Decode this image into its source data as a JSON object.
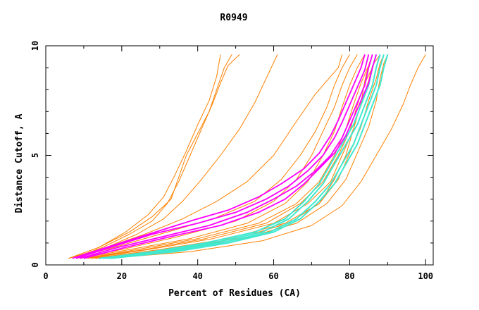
{
  "chart_data": {
    "type": "line",
    "title": "R0949",
    "xlabel": "Percent of Residues (CA)",
    "ylabel": "Distance Cutoff, A",
    "xlim": [
      0,
      102
    ],
    "ylim": [
      0,
      10
    ],
    "x_ticks": [
      0,
      20,
      40,
      60,
      80,
      100
    ],
    "y_ticks": [
      0,
      5,
      10
    ],
    "grid": false,
    "colors": {
      "orange": "#ff8000",
      "magenta": "#ff00ff",
      "cyan": "#40e8d0",
      "axes": "#000000"
    },
    "group_orange_steep": [
      {
        "x": [
          6,
          14,
          22,
          28,
          33,
          35,
          37,
          40,
          43,
          45,
          47,
          49
        ],
        "y": [
          0.3,
          0.8,
          1.5,
          2.2,
          3.0,
          4.0,
          5.0,
          6.0,
          7.0,
          8.0,
          9.0,
          9.6
        ]
      },
      {
        "x": [
          7,
          15,
          22,
          28,
          32,
          35,
          38,
          41,
          44,
          46,
          48,
          51
        ],
        "y": [
          0.3,
          0.8,
          1.4,
          2.0,
          2.8,
          3.8,
          5.0,
          6.2,
          7.4,
          8.3,
          9.1,
          9.6
        ]
      },
      {
        "x": [
          6,
          14,
          21,
          27,
          31,
          34,
          37,
          40,
          43,
          45,
          46
        ],
        "y": [
          0.3,
          0.8,
          1.5,
          2.3,
          3.1,
          4.1,
          5.2,
          6.4,
          7.5,
          8.6,
          9.6
        ]
      },
      {
        "x": [
          7,
          16,
          24,
          31,
          36,
          41,
          46,
          51,
          55,
          58,
          61
        ],
        "y": [
          0.3,
          0.8,
          1.4,
          2.1,
          2.9,
          3.9,
          5.0,
          6.2,
          7.4,
          8.5,
          9.6
        ]
      },
      {
        "x": [
          6,
          16,
          26,
          36,
          45,
          53,
          60,
          65,
          71,
          77,
          78
        ],
        "y": [
          0.3,
          0.8,
          1.4,
          2.1,
          2.9,
          3.8,
          5.0,
          6.3,
          7.8,
          9.0,
          9.6
        ]
      }
    ],
    "group_orange_main": [
      {
        "x": [
          8,
          20,
          35,
          50,
          60,
          66,
          70,
          73,
          76,
          78,
          80,
          82
        ],
        "y": [
          0.3,
          0.7,
          1.3,
          2.0,
          2.9,
          3.9,
          5.0,
          6.1,
          7.2,
          8.2,
          9.0,
          9.6
        ]
      },
      {
        "x": [
          9,
          22,
          38,
          53,
          63,
          69,
          73,
          76,
          78,
          80,
          82,
          84
        ],
        "y": [
          0.3,
          0.7,
          1.2,
          1.9,
          2.8,
          3.8,
          5.0,
          6.1,
          7.2,
          8.2,
          9.0,
          9.6
        ]
      },
      {
        "x": [
          10,
          24,
          40,
          56,
          66,
          72,
          76,
          79,
          81,
          83,
          85,
          86
        ],
        "y": [
          0.3,
          0.7,
          1.2,
          1.9,
          2.8,
          3.8,
          5.0,
          6.2,
          7.3,
          8.3,
          9.1,
          9.6
        ]
      },
      {
        "x": [
          11,
          27,
          44,
          60,
          69,
          75,
          78,
          81,
          83,
          85,
          86,
          88
        ],
        "y": [
          0.3,
          0.7,
          1.2,
          1.9,
          2.8,
          3.8,
          5.0,
          6.2,
          7.4,
          8.4,
          9.1,
          9.6
        ]
      },
      {
        "x": [
          12,
          30,
          48,
          63,
          72,
          77,
          80,
          83,
          85,
          87,
          88,
          89
        ],
        "y": [
          0.3,
          0.7,
          1.2,
          1.9,
          2.8,
          3.9,
          5.1,
          6.3,
          7.5,
          8.5,
          9.2,
          9.6
        ]
      },
      {
        "x": [
          14,
          34,
          52,
          66,
          74,
          79,
          82,
          85,
          87,
          88,
          89,
          90
        ],
        "y": [
          0.3,
          0.7,
          1.2,
          1.9,
          2.8,
          3.9,
          5.1,
          6.3,
          7.5,
          8.5,
          9.2,
          9.6
        ]
      },
      {
        "x": [
          16,
          38,
          57,
          70,
          78,
          83,
          87,
          91,
          94,
          96,
          98,
          100
        ],
        "y": [
          0.3,
          0.6,
          1.1,
          1.8,
          2.7,
          3.8,
          5.0,
          6.2,
          7.3,
          8.2,
          9.0,
          9.6
        ]
      },
      {
        "x": [
          7,
          18,
          30,
          44,
          55,
          62,
          67,
          71,
          74,
          76,
          78,
          80
        ],
        "y": [
          0.3,
          0.8,
          1.4,
          2.1,
          2.9,
          3.9,
          5.0,
          6.1,
          7.2,
          8.2,
          9.0,
          9.6
        ]
      },
      {
        "x": [
          13,
          32,
          50,
          64,
          72,
          76,
          79,
          81,
          83,
          84,
          85,
          86
        ],
        "y": [
          0.3,
          0.7,
          1.2,
          1.9,
          2.8,
          3.9,
          5.0,
          6.2,
          7.4,
          8.4,
          9.1,
          9.6
        ]
      },
      {
        "x": [
          10,
          26,
          42,
          58,
          67,
          73,
          77,
          80,
          82,
          84,
          86,
          87
        ],
        "y": [
          0.3,
          0.7,
          1.2,
          1.9,
          2.8,
          3.8,
          5.0,
          6.1,
          7.3,
          8.3,
          9.0,
          9.6
        ]
      }
    ],
    "group_magenta": [
      {
        "x": [
          7,
          16,
          27,
          38,
          48,
          56,
          62,
          68,
          72,
          75,
          77,
          79,
          81,
          83,
          84
        ],
        "y": [
          0.3,
          0.8,
          1.4,
          2.0,
          2.5,
          3.1,
          3.7,
          4.4,
          5.1,
          5.9,
          6.6,
          7.4,
          8.2,
          9.0,
          9.6
        ]
      },
      {
        "x": [
          8,
          17,
          28,
          40,
          50,
          58,
          64,
          69,
          73,
          76,
          78,
          80,
          82,
          84,
          85
        ],
        "y": [
          0.3,
          0.8,
          1.4,
          1.9,
          2.4,
          3.0,
          3.6,
          4.3,
          5.0,
          5.8,
          6.5,
          7.3,
          8.1,
          8.9,
          9.6
        ]
      },
      {
        "x": [
          9,
          19,
          31,
          43,
          53,
          60,
          66,
          71,
          75,
          78,
          80,
          82,
          84,
          85,
          86
        ],
        "y": [
          0.3,
          0.8,
          1.3,
          1.8,
          2.4,
          3.0,
          3.6,
          4.3,
          5.0,
          5.8,
          6.6,
          7.4,
          8.2,
          9.0,
          9.6
        ]
      },
      {
        "x": [
          10,
          21,
          33,
          46,
          56,
          63,
          68,
          72,
          76,
          79,
          81,
          83,
          85,
          86,
          87
        ],
        "y": [
          0.3,
          0.8,
          1.3,
          1.8,
          2.4,
          3.0,
          3.7,
          4.4,
          5.1,
          5.9,
          6.7,
          7.5,
          8.3,
          9.0,
          9.6
        ]
      }
    ],
    "group_cyan": [
      {
        "x": [
          14,
          28,
          42,
          55,
          63,
          68,
          72,
          75,
          78,
          81,
          83,
          85,
          86,
          87
        ],
        "y": [
          0.3,
          0.6,
          1.0,
          1.5,
          2.1,
          2.9,
          3.7,
          4.6,
          5.5,
          6.4,
          7.3,
          8.2,
          9.0,
          9.6
        ]
      },
      {
        "x": [
          15,
          30,
          44,
          57,
          64,
          69,
          73,
          76,
          79,
          82,
          84,
          86,
          87,
          88
        ],
        "y": [
          0.3,
          0.6,
          1.0,
          1.5,
          2.1,
          2.9,
          3.7,
          4.6,
          5.5,
          6.4,
          7.3,
          8.2,
          9.0,
          9.6
        ]
      },
      {
        "x": [
          16,
          32,
          46,
          59,
          66,
          71,
          75,
          78,
          81,
          83,
          85,
          87,
          88,
          89
        ],
        "y": [
          0.3,
          0.6,
          1.0,
          1.5,
          2.1,
          2.9,
          3.7,
          4.6,
          5.5,
          6.4,
          7.3,
          8.2,
          9.0,
          9.6
        ]
      },
      {
        "x": [
          17,
          34,
          48,
          60,
          67,
          72,
          76,
          79,
          82,
          84,
          86,
          88,
          89,
          90
        ],
        "y": [
          0.3,
          0.6,
          1.0,
          1.5,
          2.1,
          2.9,
          3.7,
          4.6,
          5.5,
          6.4,
          7.3,
          8.2,
          9.0,
          9.6
        ]
      }
    ]
  }
}
